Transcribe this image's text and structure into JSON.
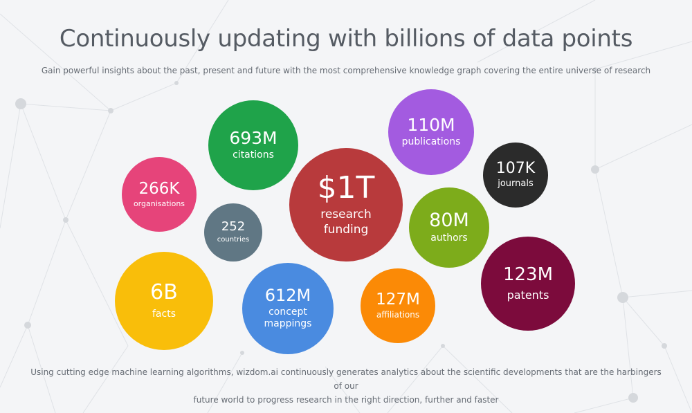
{
  "header": {
    "title": "Continuously updating with billions of data points",
    "subtitle": "Gain powerful insights about the past, present and future with the most comprehensive knowledge graph covering the entire universe of research"
  },
  "stats": [
    {
      "value": "693M",
      "label": "citations",
      "color": "#1fa34a"
    },
    {
      "value": "110M",
      "label": "publications",
      "color": "#a35be0"
    },
    {
      "value": "107K",
      "label": "journals",
      "color": "#2b2b2b"
    },
    {
      "value": "266K",
      "label": "organisations",
      "color": "#e6447a"
    },
    {
      "value": "$1T",
      "label": "research funding",
      "color": "#b83a3c"
    },
    {
      "value": "252",
      "label": "countries",
      "color": "#607784"
    },
    {
      "value": "80M",
      "label": "authors",
      "color": "#7dac1b"
    },
    {
      "value": "6B",
      "label": "facts",
      "color": "#f9be0a"
    },
    {
      "value": "612M",
      "label": "concept mappings",
      "color": "#4a8be0"
    },
    {
      "value": "127M",
      "label": "affiliations",
      "color": "#fb8a06"
    },
    {
      "value": "123M",
      "label": "patents",
      "color": "#7c0b3c"
    }
  ],
  "footer": {
    "line1": "Using cutting edge machine learning algorithms, wizdom.ai continuously generates analytics about the scientific developments that are the harbingers of our",
    "line2": "future world to progress research in the right direction, further and faster"
  }
}
